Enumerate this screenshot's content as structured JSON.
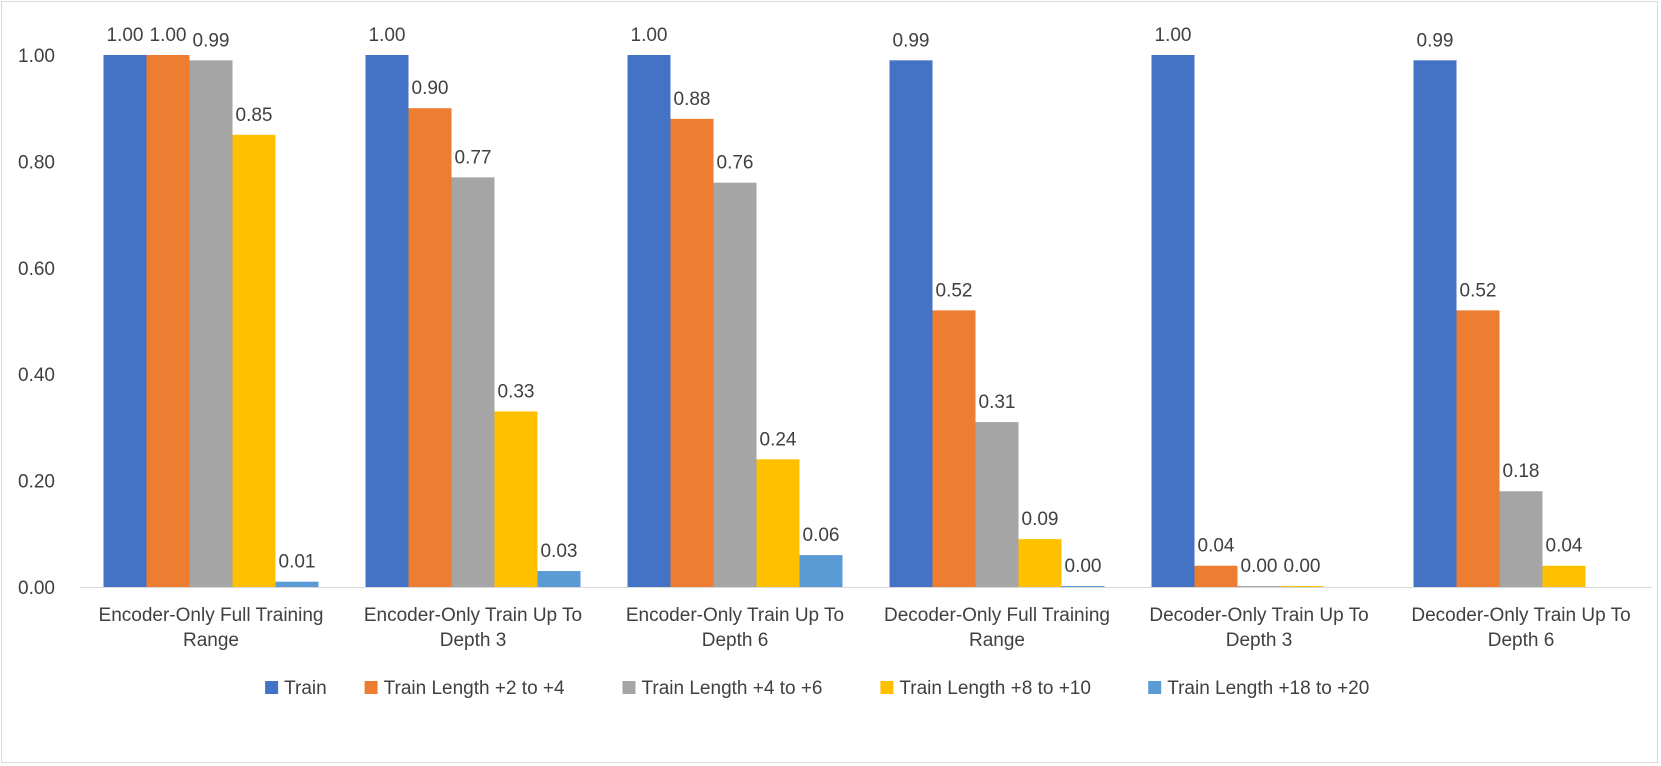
{
  "chart_data": {
    "type": "bar",
    "title": "",
    "xlabel": "",
    "ylabel": "",
    "ylim": [
      0,
      1.0
    ],
    "yticks": [
      "0.00",
      "0.20",
      "0.40",
      "0.60",
      "0.80",
      "1.00"
    ],
    "grid": false,
    "legend_position": "bottom",
    "categories": [
      [
        "Encoder-Only Full Training",
        "Range"
      ],
      [
        "Encoder-Only Train Up To",
        "Depth 3"
      ],
      [
        "Encoder-Only Train Up To",
        "Depth 6"
      ],
      [
        "Decoder-Only Full Training",
        "Range"
      ],
      [
        "Decoder-Only Train Up To",
        "Depth 3"
      ],
      [
        "Decoder-Only Train Up To",
        "Depth 6"
      ]
    ],
    "series": [
      {
        "name": "Train",
        "color": "#4472c4",
        "values": [
          1.0,
          1.0,
          1.0,
          0.99,
          1.0,
          0.99
        ]
      },
      {
        "name": "Train Length +2 to +4",
        "color": "#ed7d31",
        "values": [
          1.0,
          0.9,
          0.88,
          0.52,
          0.04,
          0.52
        ]
      },
      {
        "name": "Train Length +4 to +6",
        "color": "#a5a5a5",
        "values": [
          0.99,
          0.77,
          0.76,
          0.31,
          0.0,
          0.18
        ]
      },
      {
        "name": "Train Length +8 to +10",
        "color": "#ffc000",
        "values": [
          0.85,
          0.33,
          0.24,
          0.09,
          0.0,
          0.04
        ]
      },
      {
        "name": "Train Length +18 to +20",
        "color": "#5b9bd5",
        "values": [
          0.01,
          0.03,
          0.06,
          0.0,
          null,
          null
        ]
      }
    ]
  }
}
